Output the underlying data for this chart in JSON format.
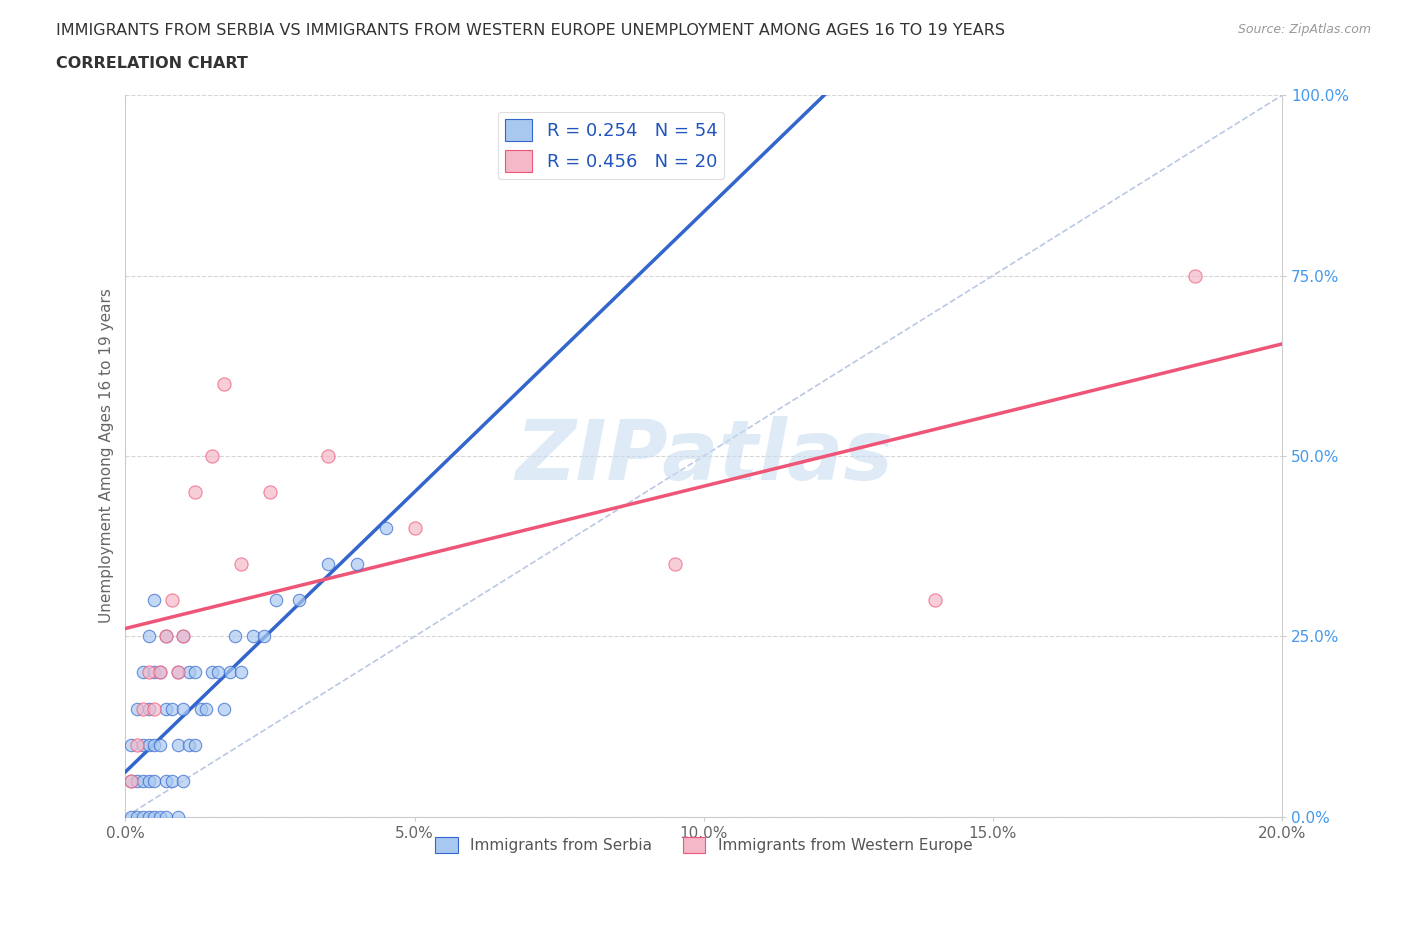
{
  "title_line1": "IMMIGRANTS FROM SERBIA VS IMMIGRANTS FROM WESTERN EUROPE UNEMPLOYMENT AMONG AGES 16 TO 19 YEARS",
  "title_line2": "CORRELATION CHART",
  "source_text": "Source: ZipAtlas.com",
  "ylabel": "Unemployment Among Ages 16 to 19 years",
  "legend_label1": "Immigrants from Serbia",
  "legend_label2": "Immigrants from Western Europe",
  "R1": 0.254,
  "N1": 54,
  "R2": 0.456,
  "N2": 20,
  "color_serbia": "#a8c8f0",
  "color_western": "#f4b8c8",
  "color_line_serbia": "#3366cc",
  "color_line_western": "#ee5577",
  "color_ref_line": "#aabbdd",
  "xlim": [
    0.0,
    0.2
  ],
  "ylim": [
    0.0,
    1.0
  ],
  "xtick_labels": [
    "0.0%",
    "5.0%",
    "10.0%",
    "15.0%",
    "20.0%"
  ],
  "xtick_values": [
    0.0,
    0.05,
    0.1,
    0.15,
    0.2
  ],
  "ytick_labels": [
    "100.0%",
    "75.0%",
    "50.0%",
    "25.0%",
    "0.0%"
  ],
  "ytick_values": [
    1.0,
    0.75,
    0.5,
    0.25,
    0.0
  ],
  "ytick_color": "#4499ee",
  "watermark_text": "ZIPatlas",
  "watermark_color": "#c8ddf0",
  "figsize": [
    14.06,
    9.3
  ],
  "dpi": 100,
  "serbia_x": [
    0.001,
    0.001,
    0.001,
    0.002,
    0.002,
    0.002,
    0.003,
    0.003,
    0.003,
    0.003,
    0.004,
    0.004,
    0.004,
    0.004,
    0.004,
    0.005,
    0.005,
    0.005,
    0.005,
    0.005,
    0.006,
    0.006,
    0.006,
    0.007,
    0.007,
    0.007,
    0.007,
    0.008,
    0.008,
    0.009,
    0.009,
    0.009,
    0.01,
    0.01,
    0.01,
    0.011,
    0.011,
    0.012,
    0.012,
    0.013,
    0.014,
    0.015,
    0.016,
    0.017,
    0.018,
    0.019,
    0.02,
    0.022,
    0.024,
    0.026,
    0.03,
    0.035,
    0.04,
    0.045
  ],
  "serbia_y": [
    0.0,
    0.05,
    0.1,
    0.0,
    0.05,
    0.15,
    0.0,
    0.05,
    0.1,
    0.2,
    0.0,
    0.05,
    0.1,
    0.15,
    0.25,
    0.0,
    0.05,
    0.1,
    0.2,
    0.3,
    0.0,
    0.1,
    0.2,
    0.0,
    0.05,
    0.15,
    0.25,
    0.05,
    0.15,
    0.0,
    0.1,
    0.2,
    0.05,
    0.15,
    0.25,
    0.1,
    0.2,
    0.1,
    0.2,
    0.15,
    0.15,
    0.2,
    0.2,
    0.15,
    0.2,
    0.25,
    0.2,
    0.25,
    0.25,
    0.3,
    0.3,
    0.35,
    0.35,
    0.4
  ],
  "western_x": [
    0.001,
    0.002,
    0.003,
    0.004,
    0.005,
    0.006,
    0.007,
    0.008,
    0.009,
    0.01,
    0.012,
    0.015,
    0.017,
    0.02,
    0.025,
    0.035,
    0.05,
    0.095,
    0.14,
    0.185
  ],
  "western_y": [
    0.05,
    0.1,
    0.15,
    0.2,
    0.15,
    0.2,
    0.25,
    0.3,
    0.2,
    0.25,
    0.45,
    0.5,
    0.6,
    0.35,
    0.45,
    0.5,
    0.4,
    0.35,
    0.3,
    0.75
  ]
}
